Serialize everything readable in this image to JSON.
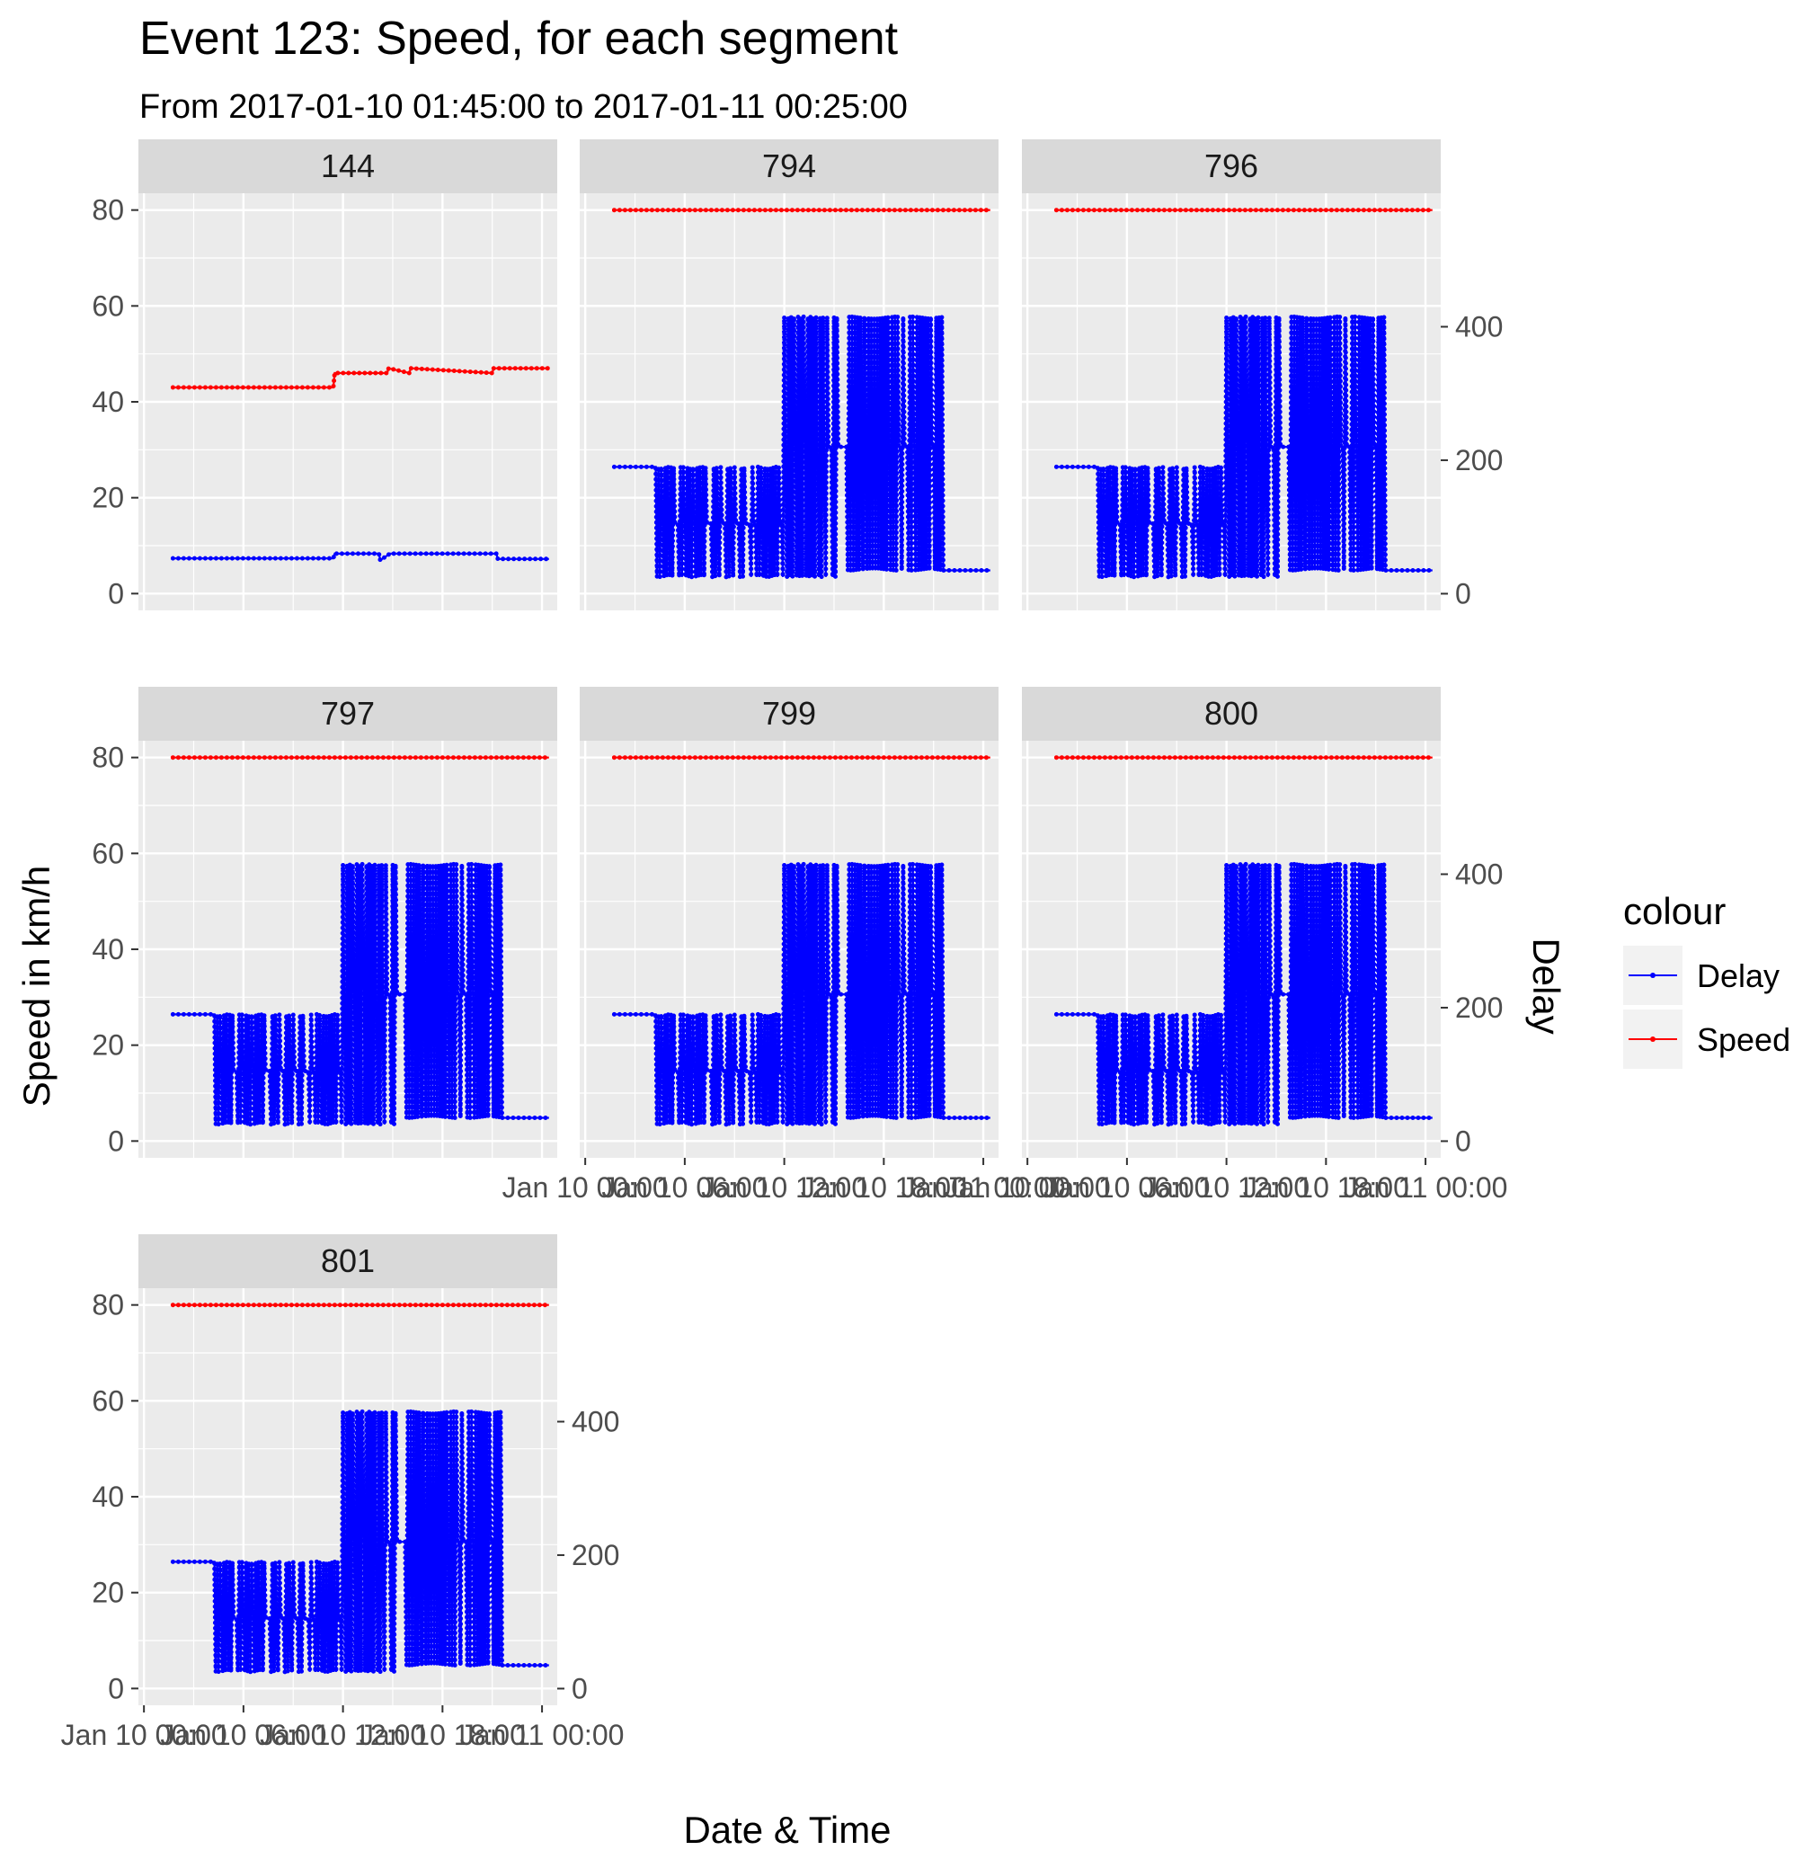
{
  "title": "Event 123: Speed, for each segment",
  "subtitle": "From 2017-01-10 01:45:00 to 2017-01-11 00:25:00",
  "xlabel": "Date & Time",
  "ylabel_left": "Speed in km/h",
  "ylabel_right": "Delay",
  "legend": {
    "title": "colour",
    "items": [
      {
        "label": "Delay",
        "color": "#0000ff"
      },
      {
        "label": "Speed",
        "color": "#ff0000"
      }
    ]
  },
  "colors": {
    "speed": "#ff0000",
    "delay": "#0000ff",
    "panel_bg": "#ebebeb",
    "strip_bg": "#d9d9d9",
    "grid": "#ffffff"
  },
  "chart_data": {
    "type": "line",
    "facet_by": "segment",
    "x_range": [
      "2017-01-10 01:45",
      "2017-01-11 00:25"
    ],
    "x_ticks": [
      "Jan 10 00:00",
      "Jan 10 06:00",
      "Jan 10 12:00",
      "Jan 10 18:00",
      "Jan 11 00:00"
    ],
    "x_tick_dates": [
      "2017-01-10 00:00",
      "2017-01-10 06:00",
      "2017-01-10 12:00",
      "2017-01-10 18:00",
      "2017-01-11 00:00"
    ],
    "y_left": {
      "label": "Speed in km/h",
      "ticks": [
        0,
        20,
        40,
        60,
        80
      ],
      "range": [
        -3.5,
        83.5
      ]
    },
    "y_right": {
      "label": "Delay",
      "ticks": [
        0,
        200,
        400
      ],
      "range": [
        -25,
        600
      ]
    },
    "grid": true,
    "legend_position": "right",
    "panels": [
      {
        "segment": "144",
        "speed": [
          [
            "2017-01-10 01:45",
            43
          ],
          [
            "2017-01-10 11:25",
            43
          ],
          [
            "2017-01-10 11:30",
            46
          ],
          [
            "2017-01-10 14:40",
            46
          ],
          [
            "2017-01-10 14:45",
            47
          ],
          [
            "2017-01-10 16:00",
            46
          ],
          [
            "2017-01-10 16:05",
            47
          ],
          [
            "2017-01-10 21:00",
            46
          ],
          [
            "2017-01-10 21:05",
            47
          ],
          [
            "2017-01-11 00:25",
            47
          ]
        ],
        "delay": [
          [
            "2017-01-10 01:45",
            53
          ],
          [
            "2017-01-10 11:25",
            53
          ],
          [
            "2017-01-10 11:30",
            60
          ],
          [
            "2017-01-10 14:10",
            60
          ],
          [
            "2017-01-10 14:15",
            50
          ],
          [
            "2017-01-10 14:50",
            60
          ],
          [
            "2017-01-10 21:15",
            60
          ],
          [
            "2017-01-10 21:20",
            52
          ],
          [
            "2017-01-11 00:25",
            52
          ]
        ]
      },
      {
        "segment": "794",
        "speed": [
          [
            "2017-01-10 01:45",
            80
          ],
          [
            "2017-01-11 00:25",
            80
          ]
        ],
        "delay": "oscillating: ~190 (01:45-04:15), ~190/25 (04:15-11:50), ~415/25 (11:50-15:30), ~415/35 (15:30-21:30), ~35 (21:30-00:25)"
      },
      {
        "segment": "796",
        "speed": [
          [
            "2017-01-10 01:45",
            80
          ],
          [
            "2017-01-11 00:25",
            80
          ]
        ],
        "delay": "oscillating: ~190 (01:45-04:15), ~190/25 (04:15-11:50), ~415/25 (11:50-15:30), ~415/35 (15:30-21:30), ~35 (21:30-00:25)"
      },
      {
        "segment": "797",
        "speed": [
          [
            "2017-01-10 01:45",
            80
          ],
          [
            "2017-01-11 00:25",
            80
          ]
        ],
        "delay": "oscillating: ~190 (01:45-04:15), ~190/25 (04:15-11:50), ~415/25 (11:50-15:30), ~415/35 (15:30-21:30), ~35 (21:30-00:25)"
      },
      {
        "segment": "799",
        "speed": [
          [
            "2017-01-10 01:45",
            80
          ],
          [
            "2017-01-11 00:25",
            80
          ]
        ],
        "delay": "oscillating: ~190 (01:45-04:15), ~190/25 (04:15-11:50), ~415/25 (11:50-15:30), ~415/35 (15:30-21:30), ~35 (21:30-00:25)"
      },
      {
        "segment": "800",
        "speed": [
          [
            "2017-01-10 01:45",
            80
          ],
          [
            "2017-01-11 00:25",
            80
          ]
        ],
        "delay": "oscillating: ~190 (01:45-04:15), ~190/25 (04:15-11:50), ~415/25 (11:50-15:30), ~415/35 (15:30-21:30), ~35 (21:30-00:25)"
      },
      {
        "segment": "801",
        "speed": [
          [
            "2017-01-10 01:45",
            80
          ],
          [
            "2017-01-11 00:25",
            80
          ]
        ],
        "delay": "oscillating: ~190 (01:45-04:15), ~190/25 (04:15-11:50), ~415/25 (11:50-15:30), ~415/35 (15:30-21:30), ~35 (21:30-00:25)"
      }
    ]
  }
}
